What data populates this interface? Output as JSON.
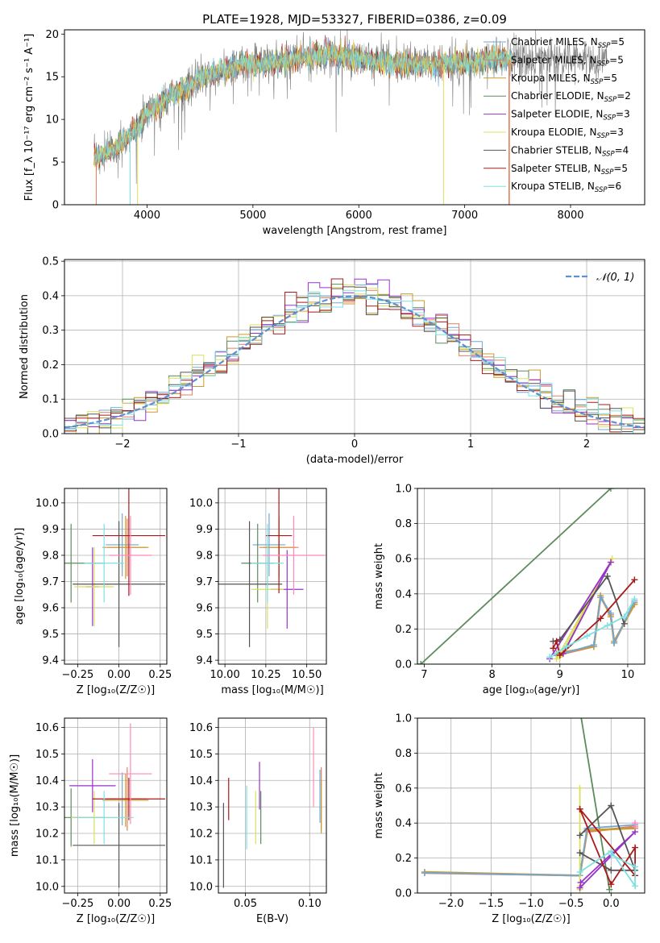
{
  "figure": {
    "title": "PLATE=1928, MJD=53327, FIBERID=0386, z=0.09"
  },
  "colors": {
    "Chabrier MILES": "#6fa8d6",
    "Salpeter MILES": "#e17f5b",
    "Kroupa MILES": "#cc9a2e",
    "Chabrier ELODIE": "#5c8c5c",
    "Salpeter ELODIE": "#9932cc",
    "Kroupa ELODIE": "#dbe05c",
    "Chabrier STELIB": "#555555",
    "Salpeter STELIB": "#aa1a1a",
    "Kroupa STELIB": "#7ee0e0",
    "Pink": "#ff88bb",
    "Gaussian": "#5f8fd0"
  },
  "chart_data": [
    {
      "id": "spectrum",
      "type": "line",
      "title": "PLATE=1928, MJD=53327, FIBERID=0386, z=0.09",
      "xlabel": "wavelength [Angstrom, rest frame]",
      "ylabel": "Flux [f_λ 10⁻¹⁷ erg cm⁻² s⁻¹ A⁻¹]",
      "xlim": [
        3220,
        8700
      ],
      "ylim": [
        0,
        20.5
      ],
      "xticks": [
        4000,
        5000,
        6000,
        7000,
        8000
      ],
      "yticks": [
        0,
        5,
        10,
        15,
        20
      ],
      "legend_position": "right",
      "series": [
        {
          "name": "Chabrier MILES",
          "label": "Chabrier MILES, N",
          "sub": "SSP",
          "n": "=5"
        },
        {
          "name": "Salpeter MILES",
          "label": "Salpeter MILES, N",
          "sub": "SSP",
          "n": "=5"
        },
        {
          "name": "Kroupa MILES",
          "label": "Kroupa MILES, N",
          "sub": "SSP",
          "n": "=5"
        },
        {
          "name": "Chabrier ELODIE",
          "label": "Chabrier ELODIE, N",
          "sub": "SSP",
          "n": "=2"
        },
        {
          "name": "Salpeter ELODIE",
          "label": "Salpeter ELODIE, N",
          "sub": "SSP",
          "n": "=3"
        },
        {
          "name": "Kroupa ELODIE",
          "label": "Kroupa ELODIE, N",
          "sub": "SSP",
          "n": "=3"
        },
        {
          "name": "Chabrier STELIB",
          "label": "Chabrier STELIB, N",
          "sub": "SSP",
          "n": "=4"
        },
        {
          "name": "Salpeter STELIB",
          "label": "Salpeter STELIB, N",
          "sub": "SSP",
          "n": "=5"
        },
        {
          "name": "Kroupa STELIB",
          "label": "Kroupa STELIB, N",
          "sub": "SSP",
          "n": "=6"
        }
      ],
      "continuum": {
        "x": [
          3500,
          3700,
          3900,
          4000,
          4100,
          4300,
          4500,
          4700,
          4900,
          5100,
          5300,
          5500,
          5700,
          5900,
          6100,
          6300,
          6500,
          6700,
          6900,
          7100,
          7300,
          7450
        ],
        "y": [
          5.5,
          6.5,
          9.0,
          10.5,
          11.8,
          13.2,
          14.8,
          15.6,
          16.4,
          16.5,
          16.9,
          17.3,
          17.6,
          17.3,
          17.0,
          16.6,
          16.5,
          16.4,
          16.6,
          16.8,
          17.1,
          17.0
        ]
      }
    },
    {
      "id": "residuals",
      "type": "bar",
      "xlabel": "(data-model)/error",
      "ylabel": "Normed distribution",
      "xlim": [
        -2.5,
        2.5
      ],
      "ylim": [
        0,
        0.505
      ],
      "xticks": [
        -2,
        -1,
        0,
        1,
        2
      ],
      "yticks": [
        0.0,
        0.1,
        0.2,
        0.3,
        0.4,
        0.5
      ],
      "legend": "𝒩(0, 1)",
      "legend_position": "top-right",
      "bin_width": 0.1
    },
    {
      "id": "age_vs_Z",
      "type": "scatter",
      "xlabel": "Z [log₁₀(Z/Z☉)]",
      "ylabel": "age  [log₁₀(age/yr)]",
      "xlim": [
        -0.33,
        0.29
      ],
      "ylim": [
        9.385,
        10.055
      ],
      "xticks": [
        -0.25,
        0.0,
        0.25
      ],
      "yticks": [
        9.4,
        9.5,
        9.6,
        9.7,
        9.8,
        9.9,
        10.0
      ],
      "series": [
        {
          "name": "Chabrier MILES",
          "x": 0.02,
          "xerr": 0.1,
          "y": 9.84,
          "yerr": 0.12
        },
        {
          "name": "Salpeter MILES",
          "x": 0.05,
          "xerr": 0.12,
          "y": 9.83,
          "yerr": 0.11
        },
        {
          "name": "Kroupa MILES",
          "x": 0.04,
          "xerr": 0.14,
          "y": 9.83,
          "yerr": 0.12
        },
        {
          "name": "Chabrier ELODIE",
          "x": -0.29,
          "xerr": 0.2,
          "y": 9.77,
          "yerr": 0.15
        },
        {
          "name": "Salpeter ELODIE",
          "x": -0.16,
          "xerr": 0.04,
          "y": 9.68,
          "yerr": 0.15
        },
        {
          "name": "Kroupa ELODIE",
          "x": -0.15,
          "xerr": 0.12,
          "y": 9.68,
          "yerr": 0.15
        },
        {
          "name": "Chabrier STELIB",
          "x": 0.0,
          "xerr": 0.28,
          "y": 9.69,
          "yerr": 0.24
        },
        {
          "name": "Salpeter STELIB",
          "x": 0.06,
          "xerr": 0.22,
          "y": 9.875,
          "yerr": 0.23
        },
        {
          "name": "Kroupa STELIB",
          "x": -0.09,
          "xerr": 0.12,
          "y": 9.77,
          "yerr": 0.15
        },
        {
          "name": "Pink",
          "x": 0.07,
          "xerr": 0.13,
          "y": 9.8,
          "yerr": 0.15
        }
      ]
    },
    {
      "id": "age_vs_mass",
      "type": "scatter",
      "xlabel": "mass [log₁₀(M/M☉)]",
      "ylabel": "",
      "xlim": [
        9.96,
        10.62
      ],
      "ylim": [
        9.385,
        10.055
      ],
      "xticks": [
        10.0,
        10.25,
        10.5
      ],
      "yticks": [
        9.4,
        9.5,
        9.6,
        9.7,
        9.8,
        9.9,
        10.0
      ],
      "series": [
        {
          "name": "Chabrier MILES",
          "x": 10.27,
          "xerr": 0.1,
          "y": 9.84,
          "yerr": 0.12
        },
        {
          "name": "Salpeter MILES",
          "x": 10.33,
          "xerr": 0.12,
          "y": 9.83,
          "yerr": 0.11
        },
        {
          "name": "Kroupa MILES",
          "x": 10.33,
          "xerr": 0.1,
          "y": 9.83,
          "yerr": 0.12
        },
        {
          "name": "Chabrier ELODIE",
          "x": 10.2,
          "xerr": 0.1,
          "y": 9.77,
          "yerr": 0.15
        },
        {
          "name": "Salpeter ELODIE",
          "x": 10.38,
          "xerr": 0.1,
          "y": 9.67,
          "yerr": 0.15
        },
        {
          "name": "Kroupa ELODIE",
          "x": 10.26,
          "xerr": 0.1,
          "y": 9.67,
          "yerr": 0.15
        },
        {
          "name": "Chabrier STELIB",
          "x": 10.15,
          "xerr": 0.2,
          "y": 9.69,
          "yerr": 0.24
        },
        {
          "name": "Salpeter STELIB",
          "x": 10.33,
          "xerr": 0.08,
          "y": 9.875,
          "yerr": 0.22
        },
        {
          "name": "Kroupa STELIB",
          "x": 10.26,
          "xerr": 0.1,
          "y": 9.77,
          "yerr": 0.15
        },
        {
          "name": "Pink",
          "x": 10.42,
          "xerr": 0.19,
          "y": 9.8,
          "yerr": 0.15
        }
      ]
    },
    {
      "id": "weight_vs_age",
      "type": "line",
      "xlabel": "age  [log₁₀(age/yr)]",
      "ylabel": "mass weight",
      "xlim": [
        6.9,
        10.25
      ],
      "ylim": [
        0,
        1.0
      ],
      "xticks": [
        7,
        8,
        9,
        10
      ],
      "yticks": [
        0.0,
        0.2,
        0.4,
        0.6,
        0.8,
        1.0
      ],
      "series": [
        {
          "name": "Chabrier ELODIE",
          "x": [
            6.95,
            9.75
          ],
          "y": [
            0.0,
            1.0
          ]
        },
        {
          "name": "Salpeter MILES",
          "x": [
            8.95,
            9.5,
            9.6,
            9.75,
            9.8,
            10.1
          ],
          "y": [
            0.05,
            0.1,
            0.38,
            0.28,
            0.12,
            0.35
          ]
        },
        {
          "name": "Kroupa MILES",
          "x": [
            8.95,
            9.5,
            9.6,
            9.75,
            9.8,
            10.1
          ],
          "y": [
            0.06,
            0.1,
            0.39,
            0.27,
            0.13,
            0.34
          ]
        },
        {
          "name": "Chabrier MILES",
          "x": [
            8.95,
            9.5,
            9.6,
            9.75,
            9.8,
            10.1
          ],
          "y": [
            0.05,
            0.11,
            0.38,
            0.29,
            0.12,
            0.36
          ]
        },
        {
          "name": "Kroupa ELODIE",
          "x": [
            8.95,
            9.77,
            9.0
          ],
          "y": [
            0.03,
            0.6,
            0.04
          ]
        },
        {
          "name": "Salpeter ELODIE",
          "x": [
            8.85,
            9.75,
            9.05
          ],
          "y": [
            0.03,
            0.58,
            0.06
          ]
        },
        {
          "name": "Chabrier STELIB",
          "x": [
            8.9,
            9.0,
            9.7,
            9.95
          ],
          "y": [
            0.13,
            0.14,
            0.5,
            0.23
          ]
        },
        {
          "name": "Salpeter STELIB",
          "x": [
            8.9,
            8.95,
            9.0,
            9.6,
            10.1
          ],
          "y": [
            0.09,
            0.13,
            0.05,
            0.26,
            0.48
          ]
        },
        {
          "name": "Kroupa STELIB",
          "x": [
            8.85,
            9.1,
            9.4,
            9.7,
            9.95,
            10.1
          ],
          "y": [
            0.04,
            0.1,
            0.16,
            0.22,
            0.27,
            0.37
          ]
        }
      ]
    },
    {
      "id": "mass_vs_Z",
      "type": "scatter",
      "xlabel": "Z [log₁₀(Z/Z☉)]",
      "ylabel": "mass [log₁₀(M/M☉)]",
      "xlim": [
        -0.33,
        0.29
      ],
      "ylim": [
        9.975,
        10.635
      ],
      "xticks": [
        -0.25,
        0.0,
        0.25
      ],
      "yticks": [
        10.0,
        10.1,
        10.2,
        10.3,
        10.4,
        10.5,
        10.6
      ],
      "series": [
        {
          "name": "Chabrier MILES",
          "x": 0.02,
          "xerr": 0.1,
          "y": 10.33,
          "yerr": 0.1
        },
        {
          "name": "Salpeter MILES",
          "x": 0.05,
          "xerr": 0.12,
          "y": 10.33,
          "yerr": 0.12
        },
        {
          "name": "Kroupa MILES",
          "x": 0.04,
          "xerr": 0.14,
          "y": 10.325,
          "yerr": 0.1
        },
        {
          "name": "Chabrier ELODIE",
          "x": -0.29,
          "xerr": 0.2,
          "y": 10.26,
          "yerr": 0.11
        },
        {
          "name": "Salpeter ELODIE",
          "x": -0.16,
          "xerr": 0.14,
          "y": 10.38,
          "yerr": 0.1
        },
        {
          "name": "Kroupa ELODIE",
          "x": -0.15,
          "xerr": 0.14,
          "y": 10.26,
          "yerr": 0.1
        },
        {
          "name": "Chabrier STELIB",
          "x": 0.0,
          "xerr": 0.28,
          "y": 10.155,
          "yerr": 0.16
        },
        {
          "name": "Salpeter STELIB",
          "x": 0.06,
          "xerr": 0.22,
          "y": 10.33,
          "yerr": 0.08
        },
        {
          "name": "Kroupa STELIB",
          "x": -0.09,
          "xerr": 0.18,
          "y": 10.26,
          "yerr": 0.1
        },
        {
          "name": "Pink",
          "x": 0.07,
          "xerr": 0.13,
          "y": 10.425,
          "yerr": 0.19
        }
      ]
    },
    {
      "id": "mass_vs_EBV",
      "type": "scatter",
      "xlabel": "E(B-V)",
      "ylabel": "",
      "xlim": [
        0.029,
        0.113
      ],
      "ylim": [
        9.975,
        10.635
      ],
      "xticks": [
        0.05,
        0.1
      ],
      "yticks": [
        10.0,
        10.1,
        10.2,
        10.3,
        10.4,
        10.5,
        10.6
      ],
      "series": [
        {
          "name": "Chabrier STELIB",
          "x": 0.033,
          "y": 10.155,
          "yerr": 0.16
        },
        {
          "name": "Salpeter STELIB",
          "x": 0.037,
          "y": 10.33,
          "yerr": 0.08
        },
        {
          "name": "Kroupa STELIB",
          "x": 0.051,
          "y": 10.26,
          "yerr": 0.12
        },
        {
          "name": "Kroupa ELODIE",
          "x": 0.058,
          "y": 10.26,
          "yerr": 0.1
        },
        {
          "name": "Salpeter ELODIE",
          "x": 0.061,
          "y": 10.38,
          "yerr": 0.09
        },
        {
          "name": "Chabrier ELODIE",
          "x": 0.062,
          "y": 10.26,
          "yerr": 0.1
        },
        {
          "name": "Pink",
          "x": 0.103,
          "y": 10.45,
          "yerr": 0.15
        },
        {
          "name": "Salpeter MILES",
          "x": 0.109,
          "y": 10.33,
          "yerr": 0.12
        },
        {
          "name": "Kroupa MILES",
          "x": 0.109,
          "y": 10.3,
          "yerr": 0.1
        },
        {
          "name": "Chabrier MILES",
          "x": 0.108,
          "y": 10.34,
          "yerr": 0.1
        }
      ]
    },
    {
      "id": "weight_vs_Z",
      "type": "line",
      "xlabel": "Z [log₁₀(Z/Z☉)]",
      "ylabel": "mass weight",
      "xlim": [
        -2.42,
        0.42
      ],
      "ylim": [
        0,
        1.0
      ],
      "xticks": [
        -2.0,
        -1.5,
        -1.0,
        -0.5,
        0.0
      ],
      "yticks": [
        0.0,
        0.2,
        0.4,
        0.6,
        0.8,
        1.0
      ],
      "series": [
        {
          "name": "Chabrier ELODIE",
          "x": [
            -0.38,
            -0.02
          ],
          "y": [
            1.02,
            0.02
          ]
        },
        {
          "name": "Salpeter MILES",
          "x": [
            -2.33,
            -0.39,
            -0.3,
            0.3
          ],
          "y": [
            0.115,
            0.1,
            0.35,
            0.38
          ]
        },
        {
          "name": "Kroupa MILES",
          "x": [
            -2.33,
            -0.39,
            -0.3,
            0.3
          ],
          "y": [
            0.12,
            0.1,
            0.36,
            0.37
          ]
        },
        {
          "name": "Chabrier MILES",
          "x": [
            -2.33,
            -0.39,
            -0.3,
            0.3
          ],
          "y": [
            0.115,
            0.1,
            0.37,
            0.39
          ]
        },
        {
          "name": "Kroupa ELODIE",
          "x": [
            -0.39,
            -0.39,
            -0.38
          ],
          "y": [
            0.6,
            0.02,
            0.04
          ]
        },
        {
          "name": "Salpeter ELODIE",
          "x": [
            -0.39,
            0.3,
            -0.38
          ],
          "y": [
            0.03,
            0.35,
            0.06
          ]
        },
        {
          "name": "Chabrier STELIB",
          "x": [
            -0.39,
            0.0,
            0.3,
            0.0,
            -0.39
          ],
          "y": [
            0.23,
            0.13,
            0.13,
            0.5,
            0.33
          ]
        },
        {
          "name": "Salpeter STELIB",
          "x": [
            -0.39,
            0.3,
            0.3,
            0.0,
            -0.39
          ],
          "y": [
            0.48,
            0.1,
            0.26,
            0.05,
            0.48
          ]
        },
        {
          "name": "Kroupa STELIB",
          "x": [
            -0.39,
            0.0,
            0.3,
            0.3,
            0.0
          ],
          "y": [
            0.12,
            0.24,
            0.04,
            0.15,
            0.22
          ]
        },
        {
          "name": "Pink",
          "x": [
            0.3,
            0.3
          ],
          "y": [
            0.38,
            0.4
          ]
        }
      ]
    }
  ]
}
